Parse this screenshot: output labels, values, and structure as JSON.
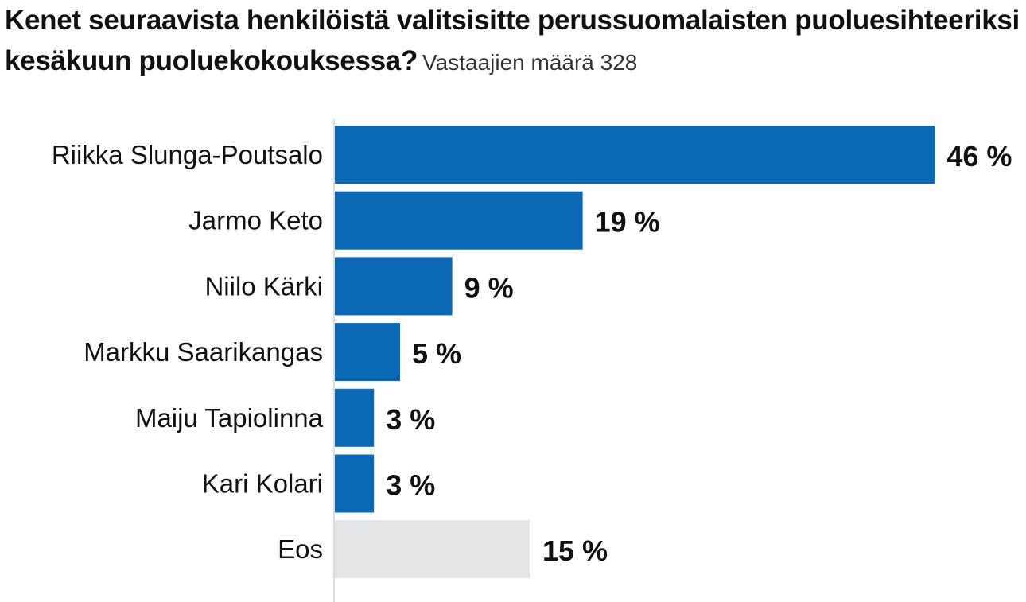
{
  "chart_data": {
    "type": "bar",
    "orientation": "horizontal",
    "title": "Kenet seuraavista henkilöistä valitsisitte perussuomalaisten puoluesihteeriksi kesäkuun puoluekokouksessa?",
    "subtitle": "Vastaajien määrä 328",
    "categories": [
      "Riikka Slunga-Poutsalo",
      "Jarmo Keto",
      "Niilo Kärki",
      "Markku Saarikangas",
      "Maiju Tapiolinna",
      "Kari Kolari",
      "Eos"
    ],
    "values": [
      46,
      19,
      9,
      5,
      3,
      3,
      15
    ],
    "value_labels": [
      "46 %",
      "19 %",
      "9 %",
      "5 %",
      "3 %",
      "3 %",
      "15 %"
    ],
    "unit": "%",
    "bar_colors": [
      "#0a68b4",
      "#0a68b4",
      "#0a68b4",
      "#0a68b4",
      "#0a68b4",
      "#0a68b4",
      "#e4e5e6"
    ],
    "grid": false,
    "legend": "none"
  },
  "colors": {
    "primary_bar": "#0a68b4",
    "eos_bar": "#e4e5e6",
    "axis_line": "#dddddd",
    "text": "#111111"
  }
}
